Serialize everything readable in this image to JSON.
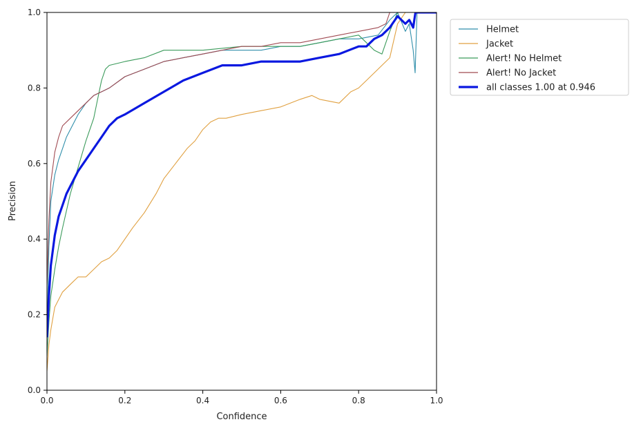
{
  "chart_data": {
    "type": "line",
    "xlabel": "Confidence",
    "ylabel": "Precision",
    "xlim": [
      0.0,
      1.0
    ],
    "ylim": [
      0.0,
      1.0
    ],
    "xticks": [
      "0.0",
      "0.2",
      "0.4",
      "0.6",
      "0.8",
      "1.0"
    ],
    "yticks": [
      "0.0",
      "0.2",
      "0.4",
      "0.6",
      "0.8",
      "1.0"
    ],
    "grid": false,
    "legend_position": "outside-top-right",
    "series": [
      {
        "name": "Helmet",
        "color": "#2f8eaa",
        "x": [
          0.0,
          0.005,
          0.01,
          0.02,
          0.03,
          0.04,
          0.05,
          0.06,
          0.08,
          0.1,
          0.12,
          0.14,
          0.16,
          0.2,
          0.25,
          0.3,
          0.35,
          0.4,
          0.45,
          0.5,
          0.55,
          0.6,
          0.65,
          0.7,
          0.75,
          0.8,
          0.85,
          0.88,
          0.9,
          0.92,
          0.93,
          0.94,
          0.945,
          0.95,
          1.0
        ],
        "y": [
          0.14,
          0.38,
          0.5,
          0.57,
          0.61,
          0.64,
          0.67,
          0.69,
          0.73,
          0.76,
          0.78,
          0.79,
          0.8,
          0.83,
          0.85,
          0.87,
          0.88,
          0.89,
          0.9,
          0.9,
          0.9,
          0.91,
          0.91,
          0.92,
          0.93,
          0.93,
          0.94,
          0.98,
          1.0,
          0.95,
          0.97,
          0.9,
          0.84,
          1.0,
          1.0
        ]
      },
      {
        "name": "Jacket",
        "color": "#e0a040",
        "x": [
          0.0,
          0.005,
          0.01,
          0.02,
          0.03,
          0.04,
          0.06,
          0.08,
          0.1,
          0.12,
          0.14,
          0.16,
          0.18,
          0.2,
          0.22,
          0.25,
          0.28,
          0.3,
          0.33,
          0.36,
          0.38,
          0.4,
          0.42,
          0.44,
          0.46,
          0.5,
          0.55,
          0.6,
          0.65,
          0.68,
          0.7,
          0.75,
          0.78,
          0.8,
          0.82,
          0.84,
          0.86,
          0.88,
          0.9,
          0.92,
          1.0
        ],
        "y": [
          0.05,
          0.12,
          0.16,
          0.22,
          0.24,
          0.26,
          0.28,
          0.3,
          0.3,
          0.32,
          0.34,
          0.35,
          0.37,
          0.4,
          0.43,
          0.47,
          0.52,
          0.56,
          0.6,
          0.64,
          0.66,
          0.69,
          0.71,
          0.72,
          0.72,
          0.73,
          0.74,
          0.75,
          0.77,
          0.78,
          0.77,
          0.76,
          0.79,
          0.8,
          0.82,
          0.84,
          0.86,
          0.88,
          0.97,
          1.0,
          1.0
        ]
      },
      {
        "name": "Alert! No Helmet",
        "color": "#3a9a5a",
        "x": [
          0.0,
          0.005,
          0.01,
          0.02,
          0.03,
          0.04,
          0.06,
          0.08,
          0.1,
          0.12,
          0.13,
          0.14,
          0.15,
          0.16,
          0.2,
          0.25,
          0.3,
          0.4,
          0.5,
          0.6,
          0.65,
          0.7,
          0.75,
          0.8,
          0.84,
          0.86,
          0.88,
          0.9,
          1.0
        ],
        "y": [
          0.09,
          0.18,
          0.25,
          0.32,
          0.38,
          0.43,
          0.52,
          0.59,
          0.66,
          0.72,
          0.77,
          0.82,
          0.85,
          0.86,
          0.87,
          0.88,
          0.9,
          0.9,
          0.91,
          0.91,
          0.91,
          0.92,
          0.93,
          0.94,
          0.9,
          0.89,
          0.95,
          1.0,
          1.0
        ]
      },
      {
        "name": "Alert! No Jacket",
        "color": "#a04a52",
        "x": [
          0.0,
          0.005,
          0.01,
          0.02,
          0.03,
          0.04,
          0.06,
          0.08,
          0.1,
          0.12,
          0.14,
          0.16,
          0.2,
          0.25,
          0.3,
          0.35,
          0.4,
          0.45,
          0.5,
          0.55,
          0.6,
          0.65,
          0.7,
          0.75,
          0.8,
          0.85,
          0.87,
          0.88,
          0.9,
          1.0
        ],
        "y": [
          0.28,
          0.45,
          0.55,
          0.63,
          0.67,
          0.7,
          0.72,
          0.74,
          0.76,
          0.78,
          0.79,
          0.8,
          0.83,
          0.85,
          0.87,
          0.88,
          0.89,
          0.9,
          0.91,
          0.91,
          0.92,
          0.92,
          0.93,
          0.94,
          0.95,
          0.96,
          0.97,
          1.0,
          1.0,
          1.0
        ]
      },
      {
        "name": "all classes 1.00 at 0.946",
        "color": "#0a18e0",
        "bold": true,
        "x": [
          0.0,
          0.005,
          0.01,
          0.02,
          0.03,
          0.04,
          0.05,
          0.06,
          0.08,
          0.1,
          0.12,
          0.14,
          0.16,
          0.18,
          0.2,
          0.25,
          0.3,
          0.35,
          0.4,
          0.45,
          0.5,
          0.55,
          0.6,
          0.65,
          0.7,
          0.75,
          0.8,
          0.82,
          0.84,
          0.86,
          0.88,
          0.9,
          0.91,
          0.92,
          0.93,
          0.94,
          0.946,
          1.0
        ],
        "y": [
          0.14,
          0.25,
          0.33,
          0.41,
          0.46,
          0.49,
          0.52,
          0.54,
          0.58,
          0.61,
          0.64,
          0.67,
          0.7,
          0.72,
          0.73,
          0.76,
          0.79,
          0.82,
          0.84,
          0.86,
          0.86,
          0.87,
          0.87,
          0.87,
          0.88,
          0.89,
          0.91,
          0.91,
          0.93,
          0.94,
          0.96,
          0.99,
          0.98,
          0.97,
          0.98,
          0.96,
          1.0,
          1.0
        ]
      }
    ]
  }
}
